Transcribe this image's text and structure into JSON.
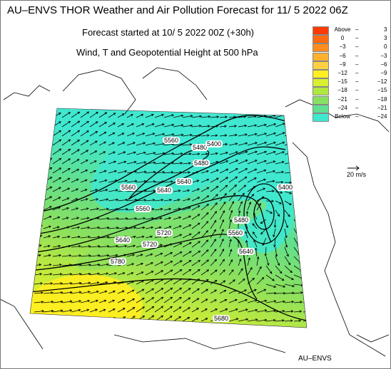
{
  "header": {
    "title": "AU–ENVS THOR Weather and Air Pollution Forecast for 11/ 5 2022  06Z",
    "subtitle1": "Forecast started at 10/ 5 2022  00Z (+30h)",
    "subtitle2": "Wind, T and Geopotential Height at 500 hPa"
  },
  "legend": {
    "rows": [
      {
        "a": "Above",
        "b": "3",
        "color": "#ff3a00"
      },
      {
        "a": "0",
        "b": "3",
        "color": "#ff6a10"
      },
      {
        "a": "−3",
        "b": "0",
        "color": "#ff8c20"
      },
      {
        "a": "−6",
        "b": "−3",
        "color": "#ffb030"
      },
      {
        "a": "−9",
        "b": "−6",
        "color": "#ffd040"
      },
      {
        "a": "−12",
        "b": "−9",
        "color": "#ffee20"
      },
      {
        "a": "−15",
        "b": "−12",
        "color": "#d8f030"
      },
      {
        "a": "−18",
        "b": "−15",
        "color": "#b0e840"
      },
      {
        "a": "−21",
        "b": "−18",
        "color": "#88e060"
      },
      {
        "a": "−24",
        "b": "−21",
        "color": "#60e090"
      },
      {
        "a": "Below",
        "b": "−24",
        "color": "#40e8d0"
      }
    ]
  },
  "wind_reference": {
    "label": "20 m/s"
  },
  "contour_labels": [
    {
      "text": "5560"
    },
    {
      "text": "5560"
    },
    {
      "text": "5640"
    },
    {
      "text": "5640"
    },
    {
      "text": "5560"
    },
    {
      "text": "5480"
    },
    {
      "text": "5480"
    },
    {
      "text": "5400"
    },
    {
      "text": "5640"
    },
    {
      "text": "5720"
    },
    {
      "text": "5720"
    },
    {
      "text": "5780"
    },
    {
      "text": "5400"
    },
    {
      "text": "5480"
    },
    {
      "text": "5560"
    },
    {
      "text": "5640"
    },
    {
      "text": "5680"
    }
  ],
  "footer": {
    "label": "AU–ENVS"
  }
}
